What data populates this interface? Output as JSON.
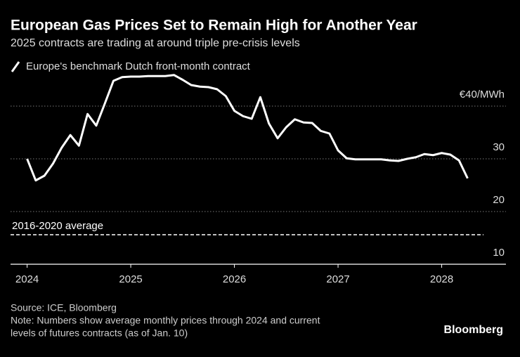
{
  "chart_data": {
    "type": "line",
    "title": "European Gas Prices Set to Remain High for Another Year",
    "subtitle": "2025 contracts are trading at around triple pre-crisis levels",
    "x": [
      2024,
      2024.083,
      2024.167,
      2024.25,
      2024.333,
      2024.417,
      2024.5,
      2024.583,
      2024.667,
      2024.75,
      2024.833,
      2024.917,
      2025,
      2025.083,
      2025.167,
      2025.25,
      2025.333,
      2025.417,
      2025.5,
      2025.583,
      2025.667,
      2025.75,
      2025.833,
      2025.917,
      2026,
      2026.083,
      2026.167,
      2026.25,
      2026.333,
      2026.417,
      2026.5,
      2026.583,
      2026.667,
      2026.75,
      2026.833,
      2026.917,
      2027,
      2027.083,
      2027.167,
      2027.25,
      2027.333,
      2027.417,
      2027.5,
      2027.583,
      2027.667,
      2027.75,
      2027.833,
      2027.917,
      2028,
      2028.083,
      2028.167,
      2028.25
    ],
    "series": [
      {
        "name": "Europe's benchmark Dutch front-month contract",
        "color": "#ffffff",
        "values": [
          30,
          25.9,
          26.8,
          29.1,
          32.1,
          34.5,
          32.5,
          38.5,
          36.3,
          40.5,
          44.8,
          45.5,
          45.6,
          45.6,
          45.7,
          45.7,
          45.7,
          45.9,
          45,
          44,
          43.7,
          43.6,
          43.2,
          41.9,
          39.1,
          38.1,
          37.6,
          41.7,
          36.7,
          33.9,
          36,
          37.5,
          36.9,
          36.8,
          35.3,
          34.8,
          31.6,
          30.1,
          29.9,
          29.9,
          29.9,
          29.9,
          29.7,
          29.6,
          30,
          30.3,
          30.9,
          30.7,
          31.1,
          30.8,
          29.7,
          26.3
        ]
      }
    ],
    "reference": {
      "label": "2016-2020 average",
      "value": 15.6
    },
    "xlim": [
      2023.84,
      2028.62
    ],
    "xticks": [
      2024,
      2025,
      2026,
      2027,
      2028
    ],
    "ylim": [
      10,
      46
    ],
    "yticks": [
      10,
      20,
      30,
      {
        "value": 40,
        "label": "€40/MWh"
      }
    ],
    "grid": true,
    "source": "Source: ICE, Bloomberg",
    "note": [
      "Note: Numbers show average monthly prices through 2024 and current",
      "levels of futures contracts (as of Jan. 10)"
    ],
    "brand": "Bloomberg"
  }
}
